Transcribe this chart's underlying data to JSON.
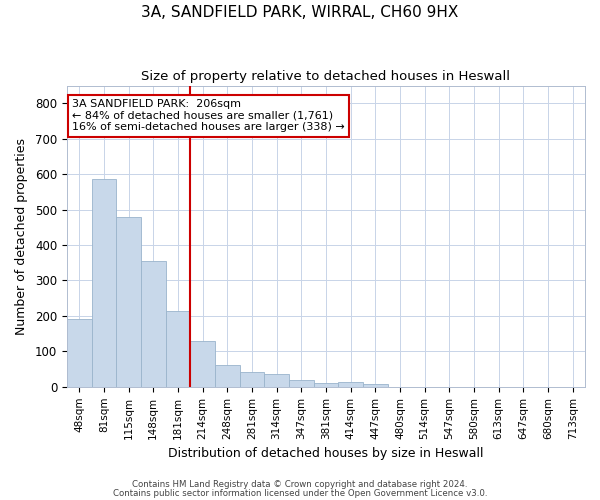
{
  "title1": "3A, SANDFIELD PARK, WIRRAL, CH60 9HX",
  "title2": "Size of property relative to detached houses in Heswall",
  "xlabel": "Distribution of detached houses by size in Heswall",
  "ylabel": "Number of detached properties",
  "categories": [
    "48sqm",
    "81sqm",
    "115sqm",
    "148sqm",
    "181sqm",
    "214sqm",
    "248sqm",
    "281sqm",
    "314sqm",
    "347sqm",
    "381sqm",
    "414sqm",
    "447sqm",
    "480sqm",
    "514sqm",
    "547sqm",
    "580sqm",
    "613sqm",
    "647sqm",
    "680sqm",
    "713sqm"
  ],
  "bar_heights": [
    190,
    585,
    480,
    355,
    215,
    130,
    62,
    43,
    37,
    18,
    11,
    13,
    7,
    0,
    0,
    0,
    0,
    0,
    0,
    0,
    0
  ],
  "bar_color": "#c8d8ea",
  "bar_edgecolor": "#9ab4cc",
  "redline_index": 5,
  "annotation_title": "3A SANDFIELD PARK:  206sqm",
  "annotation_line2": "← 84% of detached houses are smaller (1,761)",
  "annotation_line3": "16% of semi-detached houses are larger (338) →",
  "annotation_box_color": "#ffffff",
  "annotation_box_edgecolor": "#cc0000",
  "ylim": [
    0,
    850
  ],
  "yticks": [
    0,
    100,
    200,
    300,
    400,
    500,
    600,
    700,
    800
  ],
  "grid_color": "#c8d4e8",
  "footer1": "Contains HM Land Registry data © Crown copyright and database right 2024.",
  "footer2": "Contains public sector information licensed under the Open Government Licence v3.0.",
  "bg_color": "#ffffff",
  "plot_bg_color": "#ffffff"
}
